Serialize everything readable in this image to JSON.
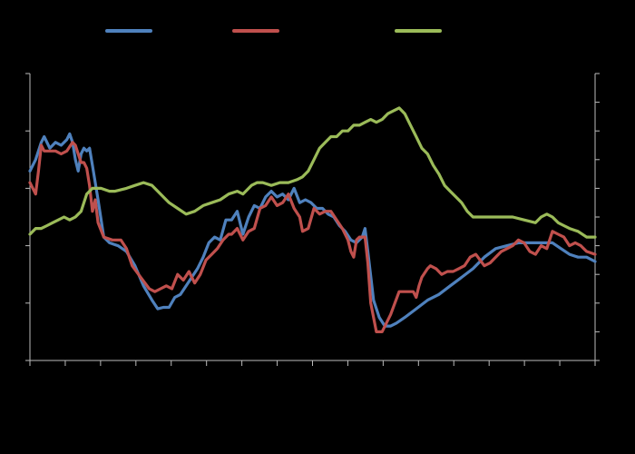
{
  "chart_data": {
    "type": "line",
    "title": "",
    "xlabel": "",
    "ylabel": "",
    "y2label": "",
    "background": "#000000",
    "axis_color": "#bbbbbb",
    "legend_placement": "top",
    "grid": false,
    "x_ticks": 17,
    "x_count": 200,
    "ylim": [
      0,
      10
    ],
    "y2lim": [
      0,
      10
    ],
    "y_ticks": [
      0,
      2,
      4,
      6,
      8,
      10
    ],
    "y2_ticks": [
      0,
      1,
      2,
      3,
      4,
      5,
      6,
      7,
      8,
      9,
      10
    ],
    "series": [
      {
        "color": "#4f81bd",
        "axis": "left",
        "points": [
          [
            0,
            6.6
          ],
          [
            2,
            7.0
          ],
          [
            4,
            7.6
          ],
          [
            5,
            7.8
          ],
          [
            7,
            7.4
          ],
          [
            9,
            7.6
          ],
          [
            11,
            7.5
          ],
          [
            13,
            7.7
          ],
          [
            14,
            7.9
          ],
          [
            15,
            7.6
          ],
          [
            16,
            7.0
          ],
          [
            17,
            6.6
          ],
          [
            18,
            7.2
          ],
          [
            19,
            7.4
          ],
          [
            20,
            7.3
          ],
          [
            21,
            7.4
          ],
          [
            22,
            6.8
          ],
          [
            24,
            5.6
          ],
          [
            26,
            4.3
          ],
          [
            28,
            4.1
          ],
          [
            31,
            4.0
          ],
          [
            34,
            3.8
          ],
          [
            37,
            3.3
          ],
          [
            40,
            2.6
          ],
          [
            43,
            2.1
          ],
          [
            45,
            1.8
          ],
          [
            47,
            1.85
          ],
          [
            49,
            1.85
          ],
          [
            51,
            2.2
          ],
          [
            53,
            2.3
          ],
          [
            55,
            2.6
          ],
          [
            57,
            2.9
          ],
          [
            59,
            3.2
          ],
          [
            61,
            3.6
          ],
          [
            63,
            4.1
          ],
          [
            65,
            4.3
          ],
          [
            67,
            4.2
          ],
          [
            69,
            4.9
          ],
          [
            71,
            4.9
          ],
          [
            73,
            5.2
          ],
          [
            75,
            4.4
          ],
          [
            77,
            5.0
          ],
          [
            79,
            5.4
          ],
          [
            81,
            5.3
          ],
          [
            83,
            5.7
          ],
          [
            85,
            5.9
          ],
          [
            87,
            5.7
          ],
          [
            89,
            5.8
          ],
          [
            91,
            5.6
          ],
          [
            93,
            6.0
          ],
          [
            95,
            5.5
          ],
          [
            97,
            5.6
          ],
          [
            99,
            5.5
          ],
          [
            101,
            5.3
          ],
          [
            103,
            5.3
          ],
          [
            105,
            5.1
          ],
          [
            107,
            5.0
          ],
          [
            109,
            4.7
          ],
          [
            111,
            4.5
          ],
          [
            113,
            4.2
          ],
          [
            115,
            4.1
          ],
          [
            117,
            4.3
          ],
          [
            118,
            4.6
          ],
          [
            119,
            3.8
          ],
          [
            121,
            2.1
          ],
          [
            123,
            1.5
          ],
          [
            125,
            1.2
          ],
          [
            127,
            1.2
          ],
          [
            129,
            1.3
          ],
          [
            132,
            1.5
          ],
          [
            136,
            1.8
          ],
          [
            140,
            2.1
          ],
          [
            144,
            2.3
          ],
          [
            148,
            2.6
          ],
          [
            152,
            2.9
          ],
          [
            156,
            3.2
          ],
          [
            160,
            3.6
          ],
          [
            164,
            3.9
          ],
          [
            168,
            4.0
          ],
          [
            172,
            4.1
          ],
          [
            176,
            4.1
          ],
          [
            180,
            4.1
          ],
          [
            184,
            4.1
          ],
          [
            187,
            3.9
          ],
          [
            190,
            3.7
          ],
          [
            193,
            3.6
          ],
          [
            196,
            3.6
          ],
          [
            199,
            3.45
          ]
        ]
      },
      {
        "color": "#c0504d",
        "axis": "left",
        "points": [
          [
            0,
            6.2
          ],
          [
            2,
            5.8
          ],
          [
            3,
            6.6
          ],
          [
            4,
            7.5
          ],
          [
            5,
            7.3
          ],
          [
            7,
            7.3
          ],
          [
            9,
            7.3
          ],
          [
            11,
            7.2
          ],
          [
            13,
            7.3
          ],
          [
            15,
            7.6
          ],
          [
            16,
            7.5
          ],
          [
            17,
            7.2
          ],
          [
            18,
            6.9
          ],
          [
            19,
            6.9
          ],
          [
            20,
            6.7
          ],
          [
            21,
            6.1
          ],
          [
            22,
            5.2
          ],
          [
            23,
            5.6
          ],
          [
            24,
            4.8
          ],
          [
            26,
            4.3
          ],
          [
            29,
            4.2
          ],
          [
            32,
            4.2
          ],
          [
            34,
            3.9
          ],
          [
            36,
            3.3
          ],
          [
            39,
            2.9
          ],
          [
            42,
            2.5
          ],
          [
            44,
            2.4
          ],
          [
            46,
            2.5
          ],
          [
            48,
            2.6
          ],
          [
            50,
            2.5
          ],
          [
            52,
            3.0
          ],
          [
            54,
            2.8
          ],
          [
            56,
            3.1
          ],
          [
            58,
            2.7
          ],
          [
            60,
            3.0
          ],
          [
            62,
            3.5
          ],
          [
            64,
            3.7
          ],
          [
            66,
            3.9
          ],
          [
            68,
            4.2
          ],
          [
            70,
            4.4
          ],
          [
            71,
            4.4
          ],
          [
            73,
            4.6
          ],
          [
            75,
            4.2
          ],
          [
            77,
            4.5
          ],
          [
            79,
            4.6
          ],
          [
            81,
            5.3
          ],
          [
            83,
            5.4
          ],
          [
            85,
            5.7
          ],
          [
            87,
            5.4
          ],
          [
            89,
            5.5
          ],
          [
            91,
            5.8
          ],
          [
            93,
            5.3
          ],
          [
            95,
            5.0
          ],
          [
            96,
            4.5
          ],
          [
            98,
            4.6
          ],
          [
            100,
            5.3
          ],
          [
            102,
            5.1
          ],
          [
            104,
            5.2
          ],
          [
            106,
            5.2
          ],
          [
            108,
            4.9
          ],
          [
            110,
            4.6
          ],
          [
            112,
            4.2
          ],
          [
            113,
            3.8
          ],
          [
            114,
            3.6
          ],
          [
            115,
            4.2
          ],
          [
            116,
            4.3
          ],
          [
            118,
            4.3
          ],
          [
            119,
            3.4
          ],
          [
            120,
            2.0
          ],
          [
            122,
            1.0
          ],
          [
            124,
            1.0
          ],
          [
            127,
            1.6
          ],
          [
            130,
            2.4
          ],
          [
            132,
            2.4
          ],
          [
            135,
            2.4
          ],
          [
            136,
            2.2
          ],
          [
            137,
            2.6
          ],
          [
            138,
            2.9
          ],
          [
            140,
            3.2
          ],
          [
            141,
            3.3
          ],
          [
            143,
            3.2
          ],
          [
            145,
            3.0
          ],
          [
            147,
            3.1
          ],
          [
            149,
            3.1
          ],
          [
            151,
            3.2
          ],
          [
            153,
            3.3
          ],
          [
            155,
            3.6
          ],
          [
            157,
            3.7
          ],
          [
            160,
            3.3
          ],
          [
            162,
            3.4
          ],
          [
            164,
            3.6
          ],
          [
            166,
            3.8
          ],
          [
            168,
            3.9
          ],
          [
            170,
            4.0
          ],
          [
            172,
            4.2
          ],
          [
            174,
            4.1
          ],
          [
            176,
            3.8
          ],
          [
            178,
            3.7
          ],
          [
            180,
            4.0
          ],
          [
            182,
            3.9
          ],
          [
            184,
            4.5
          ],
          [
            186,
            4.4
          ],
          [
            188,
            4.3
          ],
          [
            190,
            4.0
          ],
          [
            192,
            4.1
          ],
          [
            194,
            4.0
          ],
          [
            196,
            3.8
          ],
          [
            199,
            3.7
          ]
        ]
      },
      {
        "color": "#9bbb59",
        "axis": "right",
        "points": [
          [
            0,
            4.4
          ],
          [
            2,
            4.6
          ],
          [
            4,
            4.6
          ],
          [
            6,
            4.7
          ],
          [
            8,
            4.8
          ],
          [
            10,
            4.9
          ],
          [
            12,
            5.0
          ],
          [
            14,
            4.9
          ],
          [
            16,
            5.0
          ],
          [
            18,
            5.2
          ],
          [
            20,
            5.8
          ],
          [
            22,
            6.0
          ],
          [
            25,
            6.0
          ],
          [
            28,
            5.9
          ],
          [
            30,
            5.9
          ],
          [
            34,
            6.0
          ],
          [
            37,
            6.1
          ],
          [
            40,
            6.2
          ],
          [
            43,
            6.1
          ],
          [
            46,
            5.8
          ],
          [
            49,
            5.5
          ],
          [
            52,
            5.3
          ],
          [
            55,
            5.1
          ],
          [
            58,
            5.2
          ],
          [
            61,
            5.4
          ],
          [
            64,
            5.5
          ],
          [
            67,
            5.6
          ],
          [
            70,
            5.8
          ],
          [
            73,
            5.9
          ],
          [
            75,
            5.8
          ],
          [
            78,
            6.1
          ],
          [
            80,
            6.2
          ],
          [
            82,
            6.2
          ],
          [
            85,
            6.1
          ],
          [
            88,
            6.2
          ],
          [
            91,
            6.2
          ],
          [
            94,
            6.3
          ],
          [
            96,
            6.4
          ],
          [
            98,
            6.6
          ],
          [
            100,
            7.0
          ],
          [
            102,
            7.4
          ],
          [
            104,
            7.6
          ],
          [
            106,
            7.8
          ],
          [
            108,
            7.8
          ],
          [
            110,
            8.0
          ],
          [
            112,
            8.0
          ],
          [
            114,
            8.2
          ],
          [
            116,
            8.2
          ],
          [
            118,
            8.3
          ],
          [
            120,
            8.4
          ],
          [
            122,
            8.3
          ],
          [
            124,
            8.4
          ],
          [
            126,
            8.6
          ],
          [
            128,
            8.7
          ],
          [
            130,
            8.8
          ],
          [
            132,
            8.6
          ],
          [
            134,
            8.2
          ],
          [
            136,
            7.8
          ],
          [
            138,
            7.4
          ],
          [
            140,
            7.2
          ],
          [
            142,
            6.8
          ],
          [
            144,
            6.5
          ],
          [
            146,
            6.1
          ],
          [
            148,
            5.9
          ],
          [
            150,
            5.7
          ],
          [
            152,
            5.5
          ],
          [
            154,
            5.2
          ],
          [
            156,
            5.0
          ],
          [
            158,
            5.0
          ],
          [
            162,
            5.0
          ],
          [
            166,
            5.0
          ],
          [
            170,
            5.0
          ],
          [
            174,
            4.9
          ],
          [
            178,
            4.8
          ],
          [
            180,
            5.0
          ],
          [
            182,
            5.1
          ],
          [
            184,
            5.0
          ],
          [
            186,
            4.8
          ],
          [
            188,
            4.7
          ],
          [
            190,
            4.6
          ],
          [
            193,
            4.5
          ],
          [
            196,
            4.3
          ],
          [
            199,
            4.3
          ]
        ]
      }
    ]
  }
}
